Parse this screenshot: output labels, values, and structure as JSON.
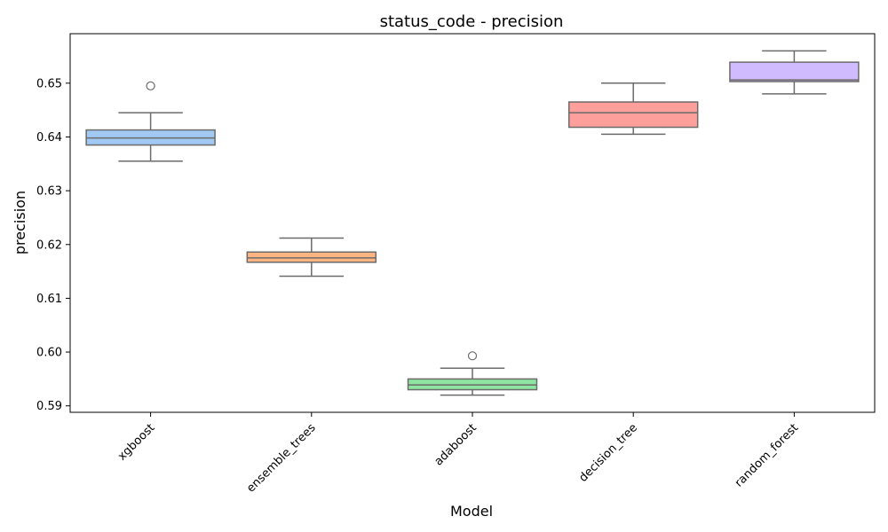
{
  "chart_data": {
    "type": "box",
    "title": "status_code - precision",
    "xlabel": "Model",
    "ylabel": "precision",
    "ylim": [
      0.5888,
      0.6592
    ],
    "yticks": [
      0.59,
      0.6,
      0.61,
      0.62,
      0.63,
      0.64,
      0.65
    ],
    "ytick_labels": [
      "0.59",
      "0.60",
      "0.61",
      "0.62",
      "0.63",
      "0.64",
      "0.65"
    ],
    "categories": [
      "xgboost",
      "ensemble_trees",
      "adaboost",
      "decision_tree",
      "random_forest"
    ],
    "grid": false,
    "boxes": [
      {
        "name": "xgboost",
        "color": "#a1c9f4",
        "whisker_low": 0.6355,
        "q1": 0.6385,
        "median": 0.6398,
        "q3": 0.6413,
        "whisker_high": 0.6445,
        "outliers": [
          0.6495
        ]
      },
      {
        "name": "ensemble_trees",
        "color": "#ffb482",
        "whisker_low": 0.6141,
        "q1": 0.6167,
        "median": 0.6175,
        "q3": 0.6186,
        "whisker_high": 0.6212,
        "outliers": []
      },
      {
        "name": "adaboost",
        "color": "#8de5a1",
        "whisker_low": 0.592,
        "q1": 0.593,
        "median": 0.5939,
        "q3": 0.595,
        "whisker_high": 0.597,
        "outliers": [
          0.5993
        ]
      },
      {
        "name": "decision_tree",
        "color": "#ff9f9b",
        "whisker_low": 0.6405,
        "q1": 0.6418,
        "median": 0.6445,
        "q3": 0.6465,
        "whisker_high": 0.65,
        "outliers": []
      },
      {
        "name": "random_forest",
        "color": "#d0bbff",
        "whisker_low": 0.648,
        "q1": 0.6503,
        "median": 0.6506,
        "q3": 0.6539,
        "whisker_high": 0.656,
        "outliers": []
      }
    ]
  }
}
